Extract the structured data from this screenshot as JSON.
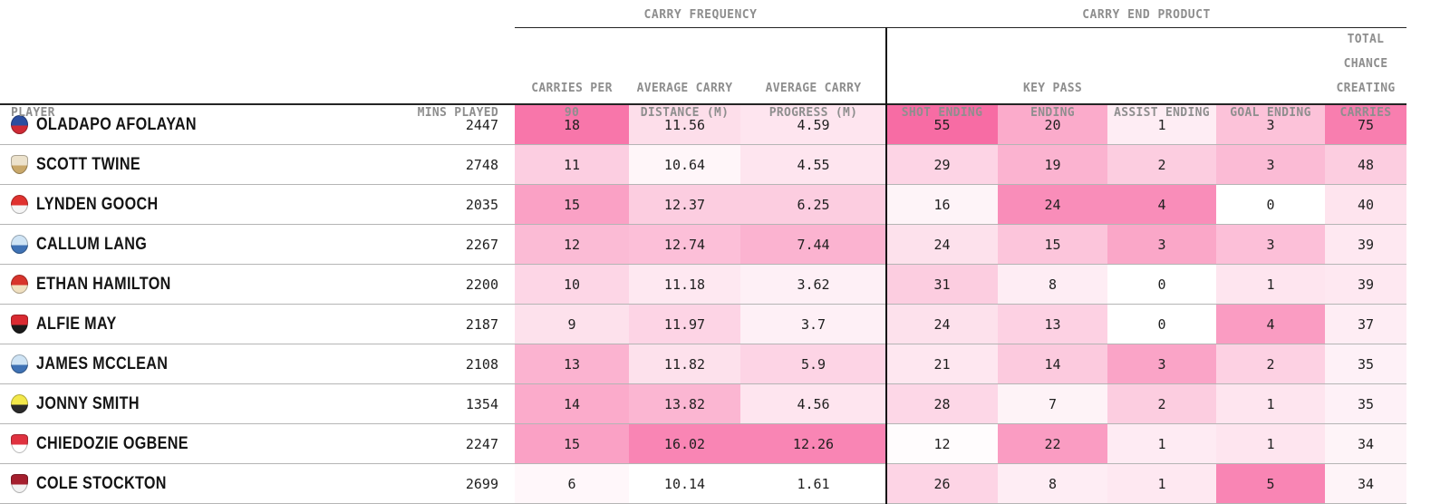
{
  "colors": {
    "heat_max": "#F767A1",
    "heat_min": "#FFFFFF",
    "header_text": "#8E8E8E",
    "row_divider": "#B5B5B5",
    "section_border": "#121212"
  },
  "table": {
    "column_headers": {
      "player": "PLAYER",
      "mins": "MINS PLAYED",
      "cp90": [
        "CARRIES PER",
        "90"
      ],
      "dist": [
        "AVERAGE CARRY",
        "DISTANCE (M)"
      ],
      "prog": [
        "AVERAGE CARRY",
        "PROGRESS (M)"
      ],
      "shot": [
        "SHOT ENDING"
      ],
      "kp": [
        "KEY PASS",
        "ENDING"
      ],
      "assist": [
        "ASSIST ENDING"
      ],
      "goal": [
        "GOAL ENDING"
      ],
      "total": [
        "TOTAL CHANCE",
        "CREATING",
        "CARRIES"
      ]
    }
  },
  "chart_data": {
    "type": "heatmap",
    "column_groups": [
      {
        "label": "CARRY FREQUENCY",
        "columns": [
          "CARRIES PER 90",
          "AVERAGE CARRY DISTANCE (M)",
          "AVERAGE CARRY PROGRESS (M)"
        ]
      },
      {
        "label": "CARRY END PRODUCT",
        "columns": [
          "SHOT ENDING",
          "KEY PASS ENDING",
          "ASSIST ENDING",
          "GOAL ENDING",
          "TOTAL CHANCE CREATING CARRIES"
        ]
      }
    ],
    "value_columns": [
      "carries_per_90",
      "avg_carry_distance_m",
      "avg_carry_progress_m",
      "shot_ending",
      "key_pass_ending",
      "assist_ending",
      "goal_ending",
      "total_chance_creating_carries"
    ],
    "rows": [
      {
        "player": "OLADAPO AFOLAYAN",
        "mins_played": "2447",
        "values": [
          "18",
          "11.56",
          "4.59",
          "55",
          "20",
          "1",
          "3",
          "75"
        ],
        "heat": [
          0.9,
          0.22,
          0.17,
          0.97,
          0.55,
          0.12,
          0.4,
          0.85
        ],
        "badge": {
          "name": "bolton-wanderers-badge",
          "shape": "circle",
          "colors": [
            "#2c4ea0",
            "#cf2a35"
          ]
        }
      },
      {
        "player": "SCOTT TWINE",
        "mins_played": "2748",
        "values": [
          "11",
          "10.64",
          "4.55",
          "29",
          "19",
          "2",
          "3",
          "48"
        ],
        "heat": [
          0.32,
          0.06,
          0.17,
          0.28,
          0.5,
          0.33,
          0.45,
          0.33
        ],
        "badge": {
          "name": "mk-dons-badge",
          "shape": "shield",
          "colors": [
            "#ece2cc",
            "#c9a86a"
          ]
        }
      },
      {
        "player": "LYNDEN GOOCH",
        "mins_played": "2035",
        "values": [
          "15",
          "12.37",
          "6.25",
          "16",
          "24",
          "4",
          "0",
          "40"
        ],
        "heat": [
          0.62,
          0.33,
          0.33,
          0.07,
          0.75,
          0.75,
          0.0,
          0.18
        ],
        "badge": {
          "name": "sunderland-badge",
          "shape": "circle",
          "colors": [
            "#e0322f",
            "#f5f5f5"
          ]
        }
      },
      {
        "player": "CALLUM LANG",
        "mins_played": "2267",
        "values": [
          "12",
          "12.74",
          "7.44",
          "24",
          "15",
          "3",
          "3",
          "39"
        ],
        "heat": [
          0.45,
          0.42,
          0.5,
          0.2,
          0.38,
          0.58,
          0.42,
          0.15
        ],
        "badge": {
          "name": "wigan-athletic-badge",
          "shape": "circle",
          "colors": [
            "#cfe4f5",
            "#3f72b5"
          ]
        }
      },
      {
        "player": "ETHAN HAMILTON",
        "mins_played": "2200",
        "values": [
          "10",
          "11.18",
          "3.62",
          "31",
          "8",
          "0",
          "1",
          "39"
        ],
        "heat": [
          0.27,
          0.15,
          0.1,
          0.33,
          0.12,
          0.0,
          0.17,
          0.15
        ],
        "badge": {
          "name": "accrington-stanley-badge",
          "shape": "circle",
          "colors": [
            "#d8342c",
            "#f0e0c0"
          ]
        }
      },
      {
        "player": "ALFIE MAY",
        "mins_played": "2187",
        "values": [
          "9",
          "11.97",
          "3.7",
          "24",
          "13",
          "0",
          "4",
          "37"
        ],
        "heat": [
          0.2,
          0.28,
          0.1,
          0.2,
          0.3,
          0.0,
          0.65,
          0.12
        ],
        "badge": {
          "name": "cheltenham-town-badge",
          "shape": "shield",
          "colors": [
            "#d92a31",
            "#1a1a1a"
          ]
        }
      },
      {
        "player": "JAMES MCCLEAN",
        "mins_played": "2108",
        "values": [
          "13",
          "11.82",
          "5.9",
          "21",
          "14",
          "3",
          "2",
          "35"
        ],
        "heat": [
          0.5,
          0.2,
          0.28,
          0.16,
          0.35,
          0.6,
          0.3,
          0.09
        ],
        "badge": {
          "name": "wigan-athletic-badge",
          "shape": "circle",
          "colors": [
            "#cfe4f5",
            "#3f72b5"
          ]
        }
      },
      {
        "player": "JONNY SMITH",
        "mins_played": "1354",
        "values": [
          "14",
          "13.82",
          "4.56",
          "28",
          "7",
          "2",
          "1",
          "35"
        ],
        "heat": [
          0.55,
          0.48,
          0.17,
          0.26,
          0.08,
          0.33,
          0.17,
          0.09
        ],
        "badge": {
          "name": "burton-albion-badge",
          "shape": "circle",
          "colors": [
            "#f3e84a",
            "#2a2a2a"
          ]
        }
      },
      {
        "player": "CHIEDOZIE OGBENE",
        "mins_played": "2247",
        "values": [
          "15",
          "16.02",
          "12.26",
          "12",
          "22",
          "1",
          "1",
          "34"
        ],
        "heat": [
          0.62,
          0.8,
          0.8,
          0.02,
          0.65,
          0.13,
          0.17,
          0.07
        ],
        "badge": {
          "name": "rotherham-united-badge",
          "shape": "shield",
          "colors": [
            "#e03240",
            "#ffffff"
          ]
        }
      },
      {
        "player": "COLE STOCKTON",
        "mins_played": "2699",
        "values": [
          "6",
          "10.14",
          "1.61",
          "26",
          "8",
          "1",
          "5",
          "34"
        ],
        "heat": [
          0.05,
          0.0,
          0.0,
          0.28,
          0.12,
          0.15,
          0.8,
          0.07
        ],
        "badge": {
          "name": "morecambe-badge",
          "shape": "shield",
          "colors": [
            "#a51f2e",
            "#f2f2f2"
          ]
        }
      }
    ]
  }
}
